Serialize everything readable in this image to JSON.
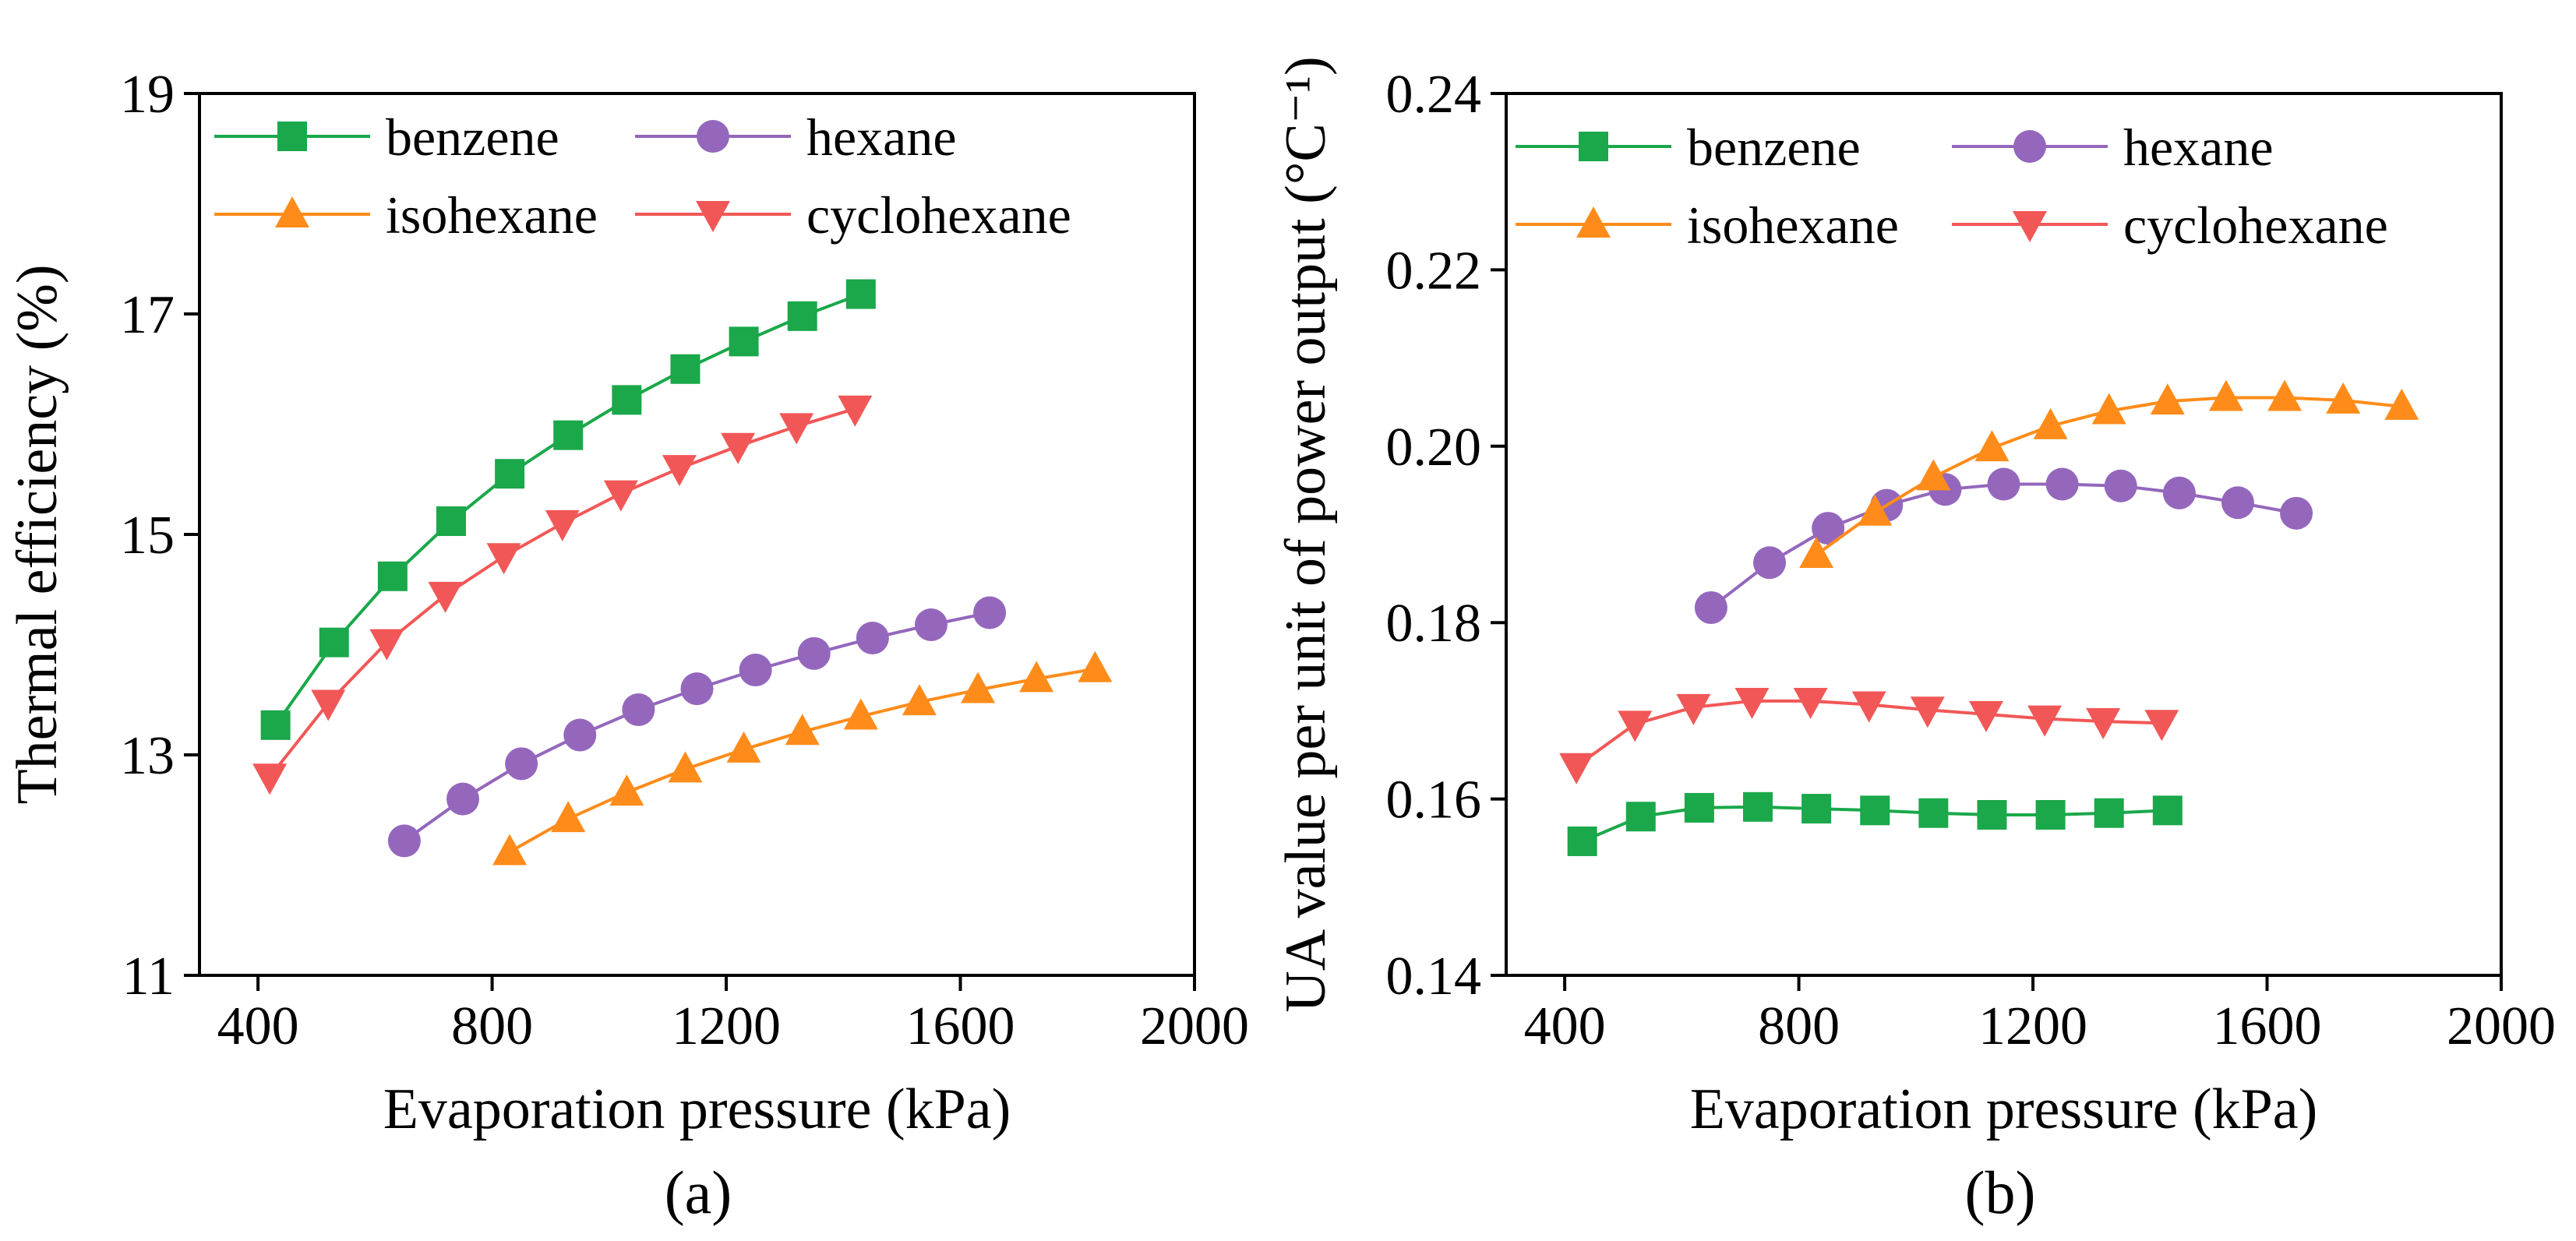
{
  "chart_data": [
    {
      "id": "a",
      "type": "line",
      "panel_label": "(a)",
      "xlabel": "Evaporation pressure (kPa)",
      "ylabel": "Thermal efficiency (%)",
      "xlim": [
        300,
        2000
      ],
      "ylim": [
        11,
        19
      ],
      "xticks": [
        400,
        800,
        1200,
        1600,
        2000
      ],
      "yticks": [
        11,
        13,
        15,
        17,
        19
      ],
      "legend": {
        "placement": "top-left",
        "columns": 2
      },
      "series": [
        {
          "name": "benzene",
          "marker": "square",
          "color": "#1aa84a",
          "x": [
            430,
            530,
            630,
            730,
            830,
            930,
            1030,
            1130,
            1230,
            1330,
            1430
          ],
          "y": [
            13.27,
            14.02,
            14.62,
            15.12,
            15.55,
            15.9,
            16.22,
            16.5,
            16.75,
            16.98,
            17.18
          ]
        },
        {
          "name": "hexane",
          "marker": "circle",
          "color": "#9467bd",
          "x": [
            650,
            750,
            850,
            950,
            1050,
            1150,
            1250,
            1350,
            1450,
            1550,
            1650
          ],
          "y": [
            12.22,
            12.6,
            12.92,
            13.18,
            13.41,
            13.6,
            13.77,
            13.92,
            14.06,
            14.18,
            14.29
          ]
        },
        {
          "name": "isohexane",
          "marker": "triangle-up",
          "color": "#ff8c1a",
          "x": [
            830,
            930,
            1030,
            1130,
            1230,
            1330,
            1430,
            1530,
            1630,
            1730,
            1830
          ],
          "y": [
            12.12,
            12.42,
            12.66,
            12.87,
            13.05,
            13.21,
            13.35,
            13.48,
            13.59,
            13.69,
            13.78
          ]
        },
        {
          "name": "cyclohexane",
          "marker": "triangle-down",
          "color": "#f25757",
          "x": [
            420,
            520,
            620,
            720,
            820,
            920,
            1020,
            1120,
            1220,
            1320,
            1420
          ],
          "y": [
            12.8,
            13.47,
            14.02,
            14.45,
            14.8,
            15.1,
            15.37,
            15.6,
            15.8,
            15.98,
            16.14
          ]
        }
      ]
    },
    {
      "id": "b",
      "type": "line",
      "panel_label": "(b)",
      "xlabel": "Evaporation pressure (kPa)",
      "ylabel": "UA value per unit of power output (°C⁻¹)",
      "xlim": [
        300,
        2000
      ],
      "ylim": [
        0.14,
        0.24
      ],
      "xticks": [
        400,
        800,
        1200,
        1600,
        2000
      ],
      "yticks": [
        "0.14",
        "0.16",
        "0.18",
        "0.20",
        "0.22",
        "0.24"
      ],
      "legend": {
        "placement": "top",
        "columns": 2
      },
      "series": [
        {
          "name": "benzene",
          "marker": "square",
          "color": "#1aa84a",
          "x": [
            430,
            530,
            630,
            730,
            830,
            930,
            1030,
            1130,
            1230,
            1330,
            1430
          ],
          "y": [
            0.1552,
            0.158,
            0.159,
            0.1591,
            0.1589,
            0.1587,
            0.1584,
            0.1582,
            0.1582,
            0.1584,
            0.1587
          ]
        },
        {
          "name": "hexane",
          "marker": "circle",
          "color": "#9467bd",
          "x": [
            650,
            750,
            850,
            950,
            1050,
            1150,
            1250,
            1350,
            1450,
            1550,
            1650
          ],
          "y": [
            0.1817,
            0.1868,
            0.1907,
            0.1933,
            0.1951,
            0.1957,
            0.1957,
            0.1955,
            0.1947,
            0.1936,
            0.1924
          ]
        },
        {
          "name": "isohexane",
          "marker": "triangle-up",
          "color": "#ff8c1a",
          "x": [
            830,
            930,
            1030,
            1130,
            1230,
            1330,
            1430,
            1530,
            1630,
            1730,
            1830
          ],
          "y": [
            0.1877,
            0.1925,
            0.1965,
            0.1998,
            0.2023,
            0.204,
            0.2051,
            0.2055,
            0.2055,
            0.2052,
            0.2045
          ]
        },
        {
          "name": "cyclohexane",
          "marker": "triangle-down",
          "color": "#f25757",
          "x": [
            420,
            520,
            620,
            720,
            820,
            920,
            1020,
            1120,
            1220,
            1320,
            1420
          ],
          "y": [
            0.1637,
            0.1685,
            0.1704,
            0.1711,
            0.1711,
            0.1707,
            0.1701,
            0.1696,
            0.1691,
            0.1688,
            0.1686
          ]
        }
      ]
    }
  ]
}
